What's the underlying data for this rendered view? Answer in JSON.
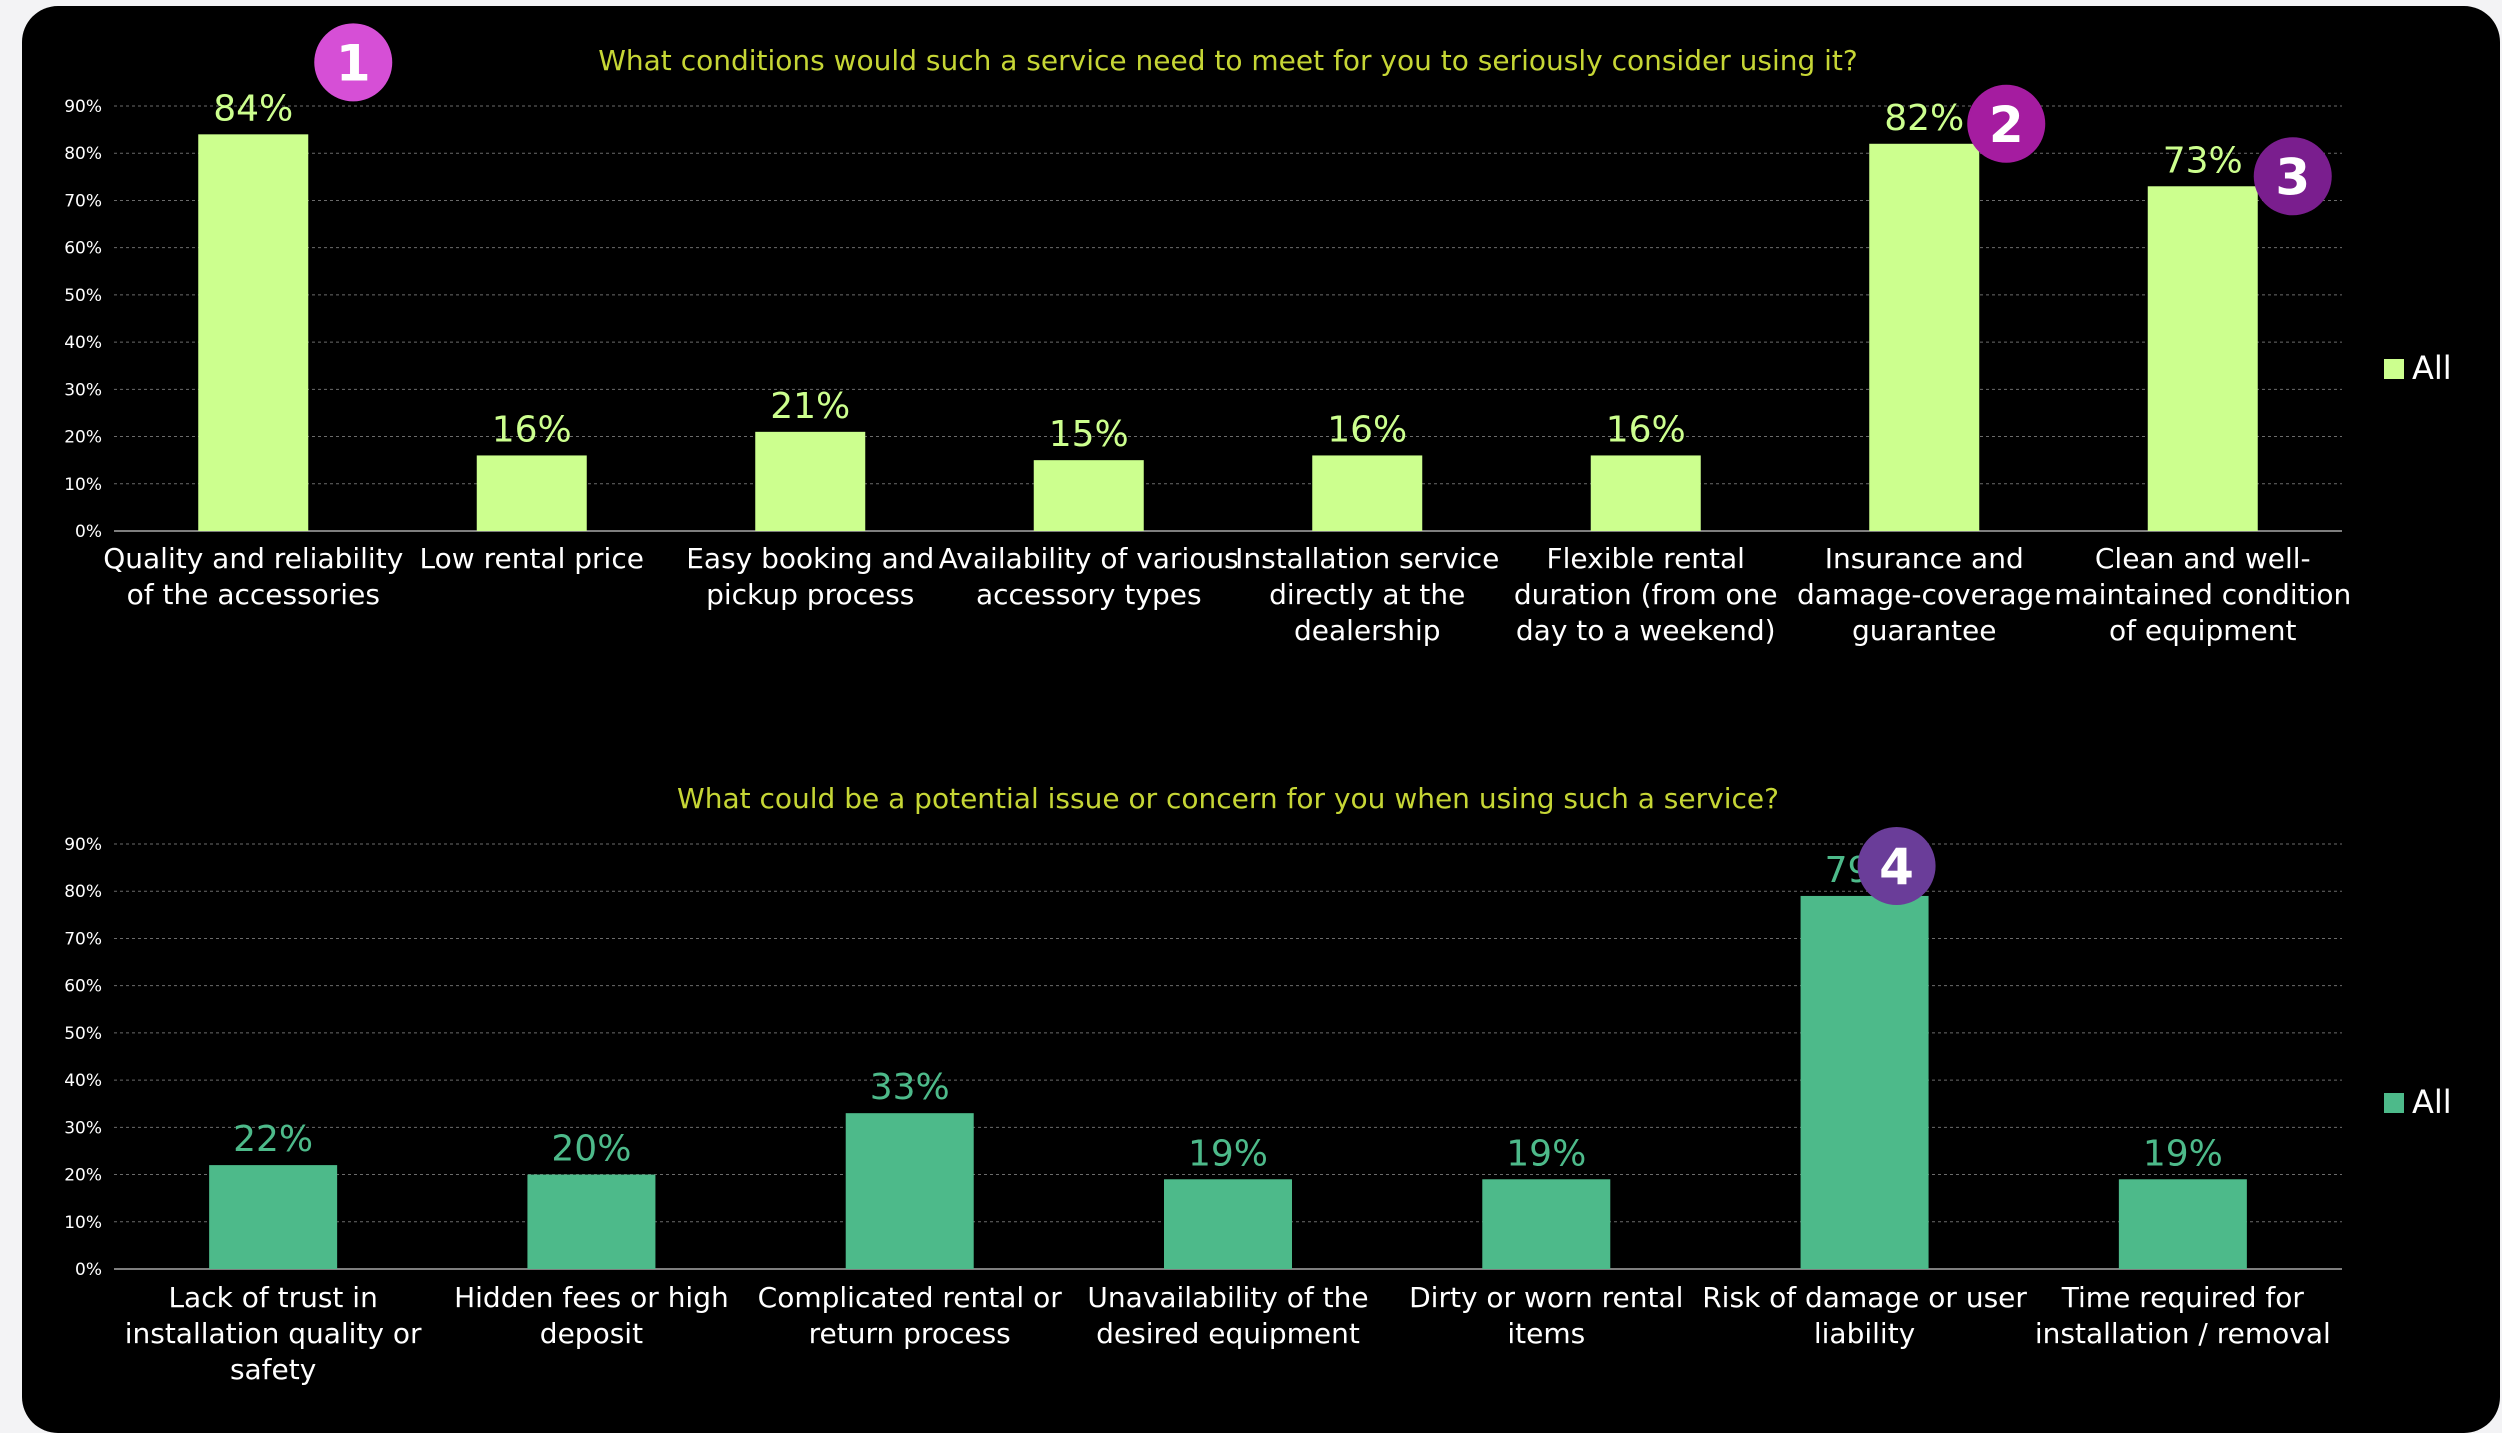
{
  "colors": {
    "background": "#000000",
    "page": "#f3f3f5",
    "title": "#c6d635",
    "grid": "#6b6b6b",
    "axis": "#a8a8a8",
    "text": "#ffffff",
    "top_series": "#ccff8e",
    "bottom_series": "#4dba8a",
    "badge_1": "#d64fd6",
    "badge_2": "#a51ca0",
    "badge_3": "#7a1e8e",
    "badge_4": "#6a3d99"
  },
  "chart_data": [
    {
      "type": "bar",
      "title": "What conditions would such a service need to meet for you to seriously consider using it?",
      "categories": [
        [
          "Quality and reliability",
          "of the accessories"
        ],
        [
          "Low rental price"
        ],
        [
          "Easy booking and",
          "pickup process"
        ],
        [
          "Availability of various",
          "accessory types"
        ],
        [
          "Installation service",
          "directly at the",
          "dealership"
        ],
        [
          "Flexible rental",
          "duration (from one",
          "day to a weekend)"
        ],
        [
          "Insurance and",
          "damage-coverage",
          "guarantee"
        ],
        [
          "Clean and well-",
          "maintained condition",
          "of equipment"
        ]
      ],
      "series": [
        {
          "name": "All",
          "values": [
            84,
            16,
            21,
            15,
            16,
            16,
            82,
            73
          ],
          "labels": [
            "84%",
            "16%",
            "21%",
            "15%",
            "16%",
            "16%",
            "82%",
            "73%"
          ]
        }
      ],
      "y_ticks": [
        "0%",
        "10%",
        "20%",
        "30%",
        "40%",
        "50%",
        "60%",
        "70%",
        "80%",
        "90%"
      ],
      "ylim": [
        0,
        90
      ],
      "grid": true,
      "legend_position": "right",
      "badges": [
        {
          "text": "1",
          "category_index": 0
        },
        {
          "text": "2",
          "category_index": 6
        },
        {
          "text": "3",
          "category_index": 7
        }
      ]
    },
    {
      "type": "bar",
      "title": "What could be a potential issue or concern for you when using such a service?",
      "categories": [
        [
          "Lack of trust in",
          "installation quality or",
          "safety"
        ],
        [
          "Hidden fees or high",
          "deposit"
        ],
        [
          "Complicated rental or",
          "return process"
        ],
        [
          "Unavailability of the",
          "desired equipment"
        ],
        [
          "Dirty or worn rental",
          "items"
        ],
        [
          "Risk of damage or user",
          "liability"
        ],
        [
          "Time required for",
          "installation / removal"
        ]
      ],
      "series": [
        {
          "name": "All",
          "values": [
            22,
            20,
            33,
            19,
            19,
            79,
            19
          ],
          "labels": [
            "22%",
            "20%",
            "33%",
            "19%",
            "19%",
            "79%",
            "19%"
          ]
        }
      ],
      "y_ticks": [
        "0%",
        "10%",
        "20%",
        "30%",
        "40%",
        "50%",
        "60%",
        "70%",
        "80%",
        "90%"
      ],
      "ylim": [
        0,
        90
      ],
      "grid": true,
      "legend_position": "right",
      "badges": [
        {
          "text": "4",
          "category_index": 5
        }
      ]
    }
  ]
}
